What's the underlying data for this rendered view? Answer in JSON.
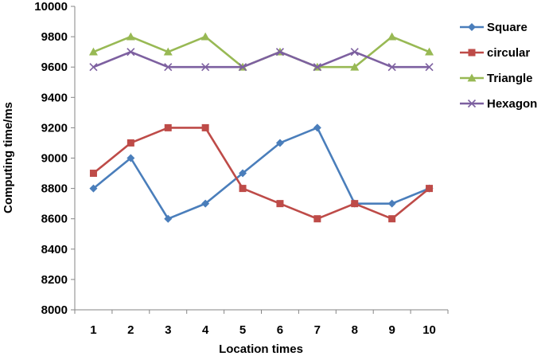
{
  "chart_data": {
    "type": "line",
    "title": "",
    "xlabel": "Location times",
    "ylabel": "Computing time/ms",
    "x": [
      1,
      2,
      3,
      4,
      5,
      6,
      7,
      8,
      9,
      10
    ],
    "xticks": [
      "1",
      "2",
      "3",
      "4",
      "5",
      "6",
      "7",
      "8",
      "9",
      "10"
    ],
    "ylim": [
      8000,
      10000
    ],
    "yticks": [
      8000,
      8200,
      8400,
      8600,
      8800,
      9000,
      9200,
      9400,
      9600,
      9800,
      10000
    ],
    "grid": false,
    "legend_position": "right",
    "series": [
      {
        "name": "Square",
        "color": "#4a7ebb",
        "marker": "diamond",
        "values": [
          8800,
          9000,
          8600,
          8700,
          8900,
          9100,
          9200,
          8700,
          8700,
          8800
        ]
      },
      {
        "name": "circular",
        "color": "#be4b48",
        "marker": "square",
        "values": [
          8900,
          9100,
          9200,
          9200,
          8800,
          8700,
          8600,
          8700,
          8600,
          8800
        ]
      },
      {
        "name": "Triangle",
        "color": "#98b954",
        "marker": "triangle",
        "values": [
          9700,
          9800,
          9700,
          9800,
          9600,
          9700,
          9600,
          9600,
          9800,
          9700
        ]
      },
      {
        "name": "Hexagon",
        "color": "#7d60a0",
        "marker": "x",
        "values": [
          9600,
          9700,
          9600,
          9600,
          9600,
          9700,
          9600,
          9700,
          9600,
          9600
        ]
      }
    ]
  }
}
